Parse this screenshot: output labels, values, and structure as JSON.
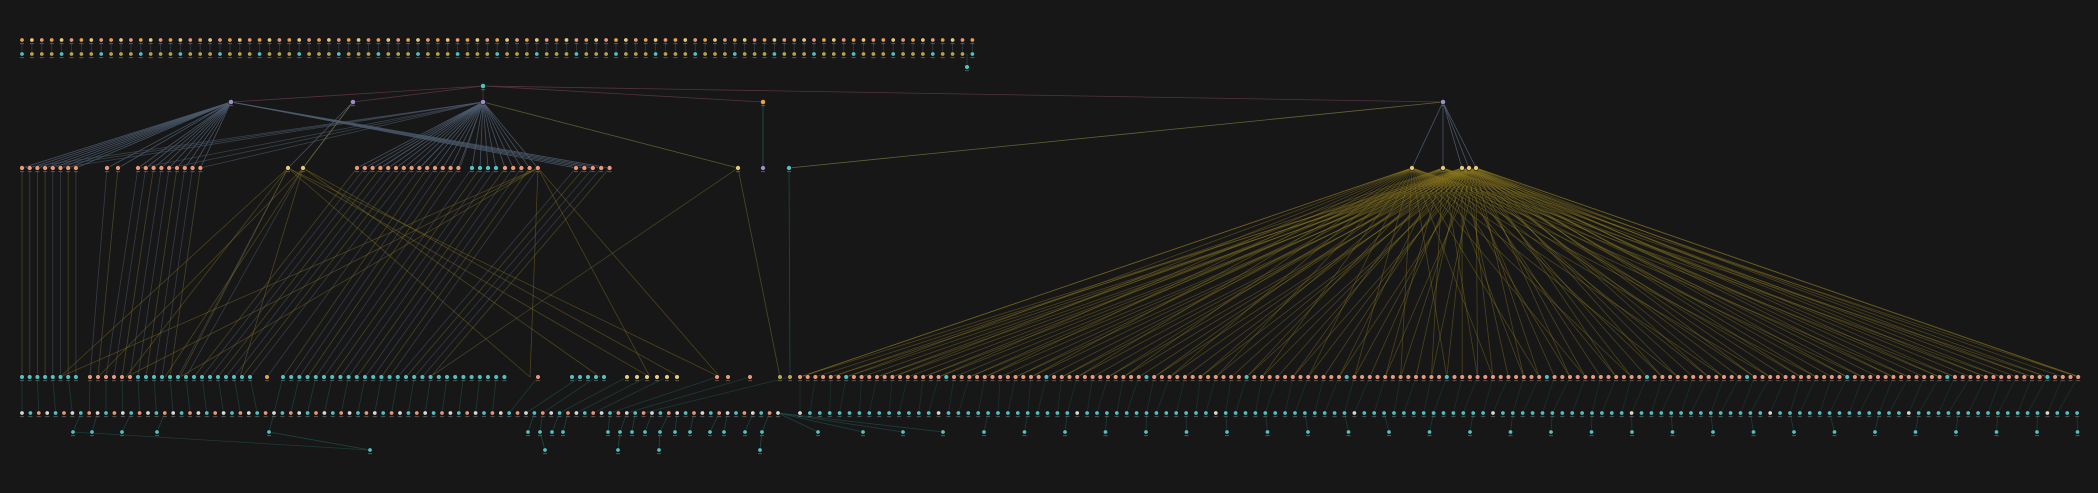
{
  "graph": {
    "colors": {
      "background": "#171717",
      "node_teal": "#4fc1c1",
      "node_salmon": "#e8977a",
      "node_orange": "#e8a04a",
      "node_yellow": "#e6c87a",
      "node_purple": "#9d8ec9",
      "node_white": "#d7d7d7",
      "node_olive": "#b9a24a",
      "edge_slate": "#4e5d70",
      "edge_gold": "#8f7a1f",
      "edge_olive": "#6d6a36",
      "edge_teal": "#1f5f5a",
      "edge_maroon": "#5a3641"
    },
    "icons": {
      "node": "circle-node-icon",
      "edge": "connector-line-icon"
    }
  }
}
